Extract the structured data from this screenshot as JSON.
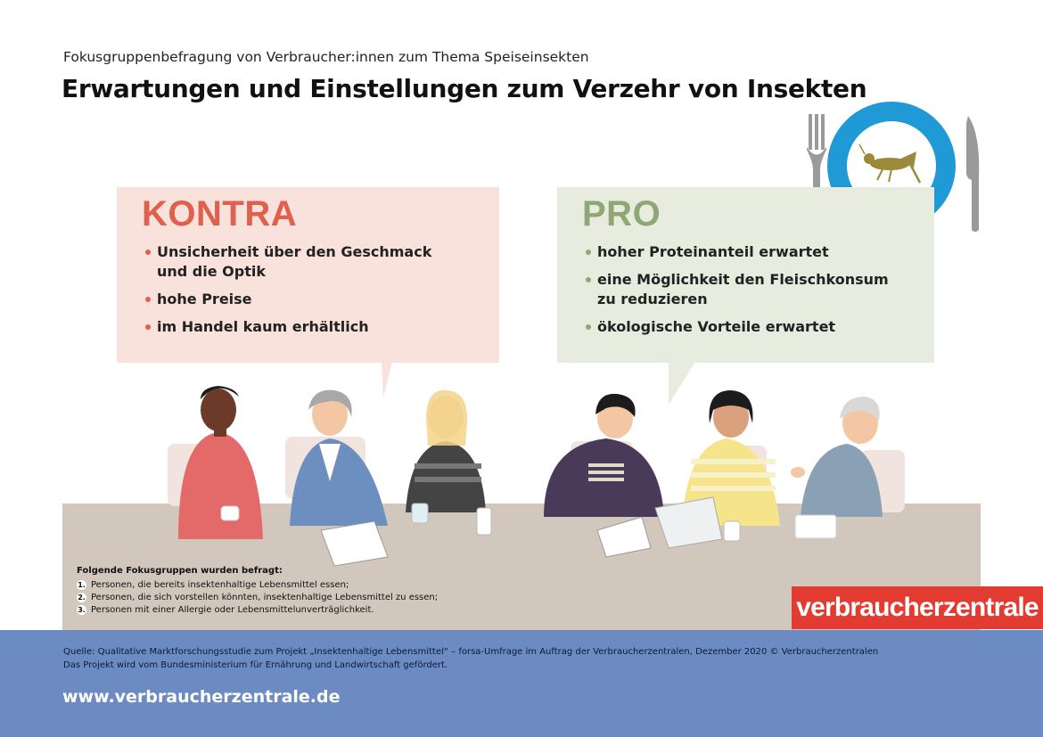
{
  "header": {
    "subtitle": "Fokusgruppenbefragung von Verbraucher:innen zum Thema Speiseinsekten",
    "title": "Erwartungen und Einstellungen zum Verzehr von Insekten"
  },
  "kontra": {
    "heading": "KONTRA",
    "items": [
      "Unsicherheit über den Geschmack",
      "und die Optik",
      "hohe Preise",
      "im Handel kaum erhältlich"
    ]
  },
  "pro": {
    "heading": "PRO",
    "items": [
      "hoher Proteinanteil erwartet",
      "eine Möglichkeit den Fleischkonsum",
      "zu reduzieren",
      "ökologische Vorteile erwartet"
    ]
  },
  "groups": {
    "heading": "Folgende Fokusgruppen wurden befragt:",
    "items": [
      {
        "num": "1.",
        "text": "Personen, die bereits insektenhaltige Lebensmittel essen;"
      },
      {
        "num": "2.",
        "text": "Personen, die sich vorstellen könnten, insektenhaltige Lebensmittel zu essen;"
      },
      {
        "num": "3.",
        "text": "Personen mit einer Allergie oder Lebensmittelunverträglichkeit."
      }
    ]
  },
  "logo": {
    "text": "verbraucherzentrale"
  },
  "footer": {
    "source_line1": "Quelle: Qualitative Marktforschungsstudie zum Projekt „Insektenhaltige Lebensmittel“ – forsa-Umfrage im Auftrag der Verbraucherzentralen, Dezember 2020 © Verbraucherzentralen",
    "source_line2": "Das Projekt wird vom Bundesministerium für Ernährung und Landwirtschaft gefördert.",
    "url": "www.verbraucherzentrale.de"
  },
  "colors": {
    "kontra": "#e0604e",
    "pro": "#8fa775",
    "footer": "#6b8bc2",
    "logo": "#e23c32",
    "plate": "#1f9ad6"
  },
  "icons": [
    "fork-icon",
    "plate-icon",
    "grasshopper-icon",
    "knife-icon"
  ]
}
